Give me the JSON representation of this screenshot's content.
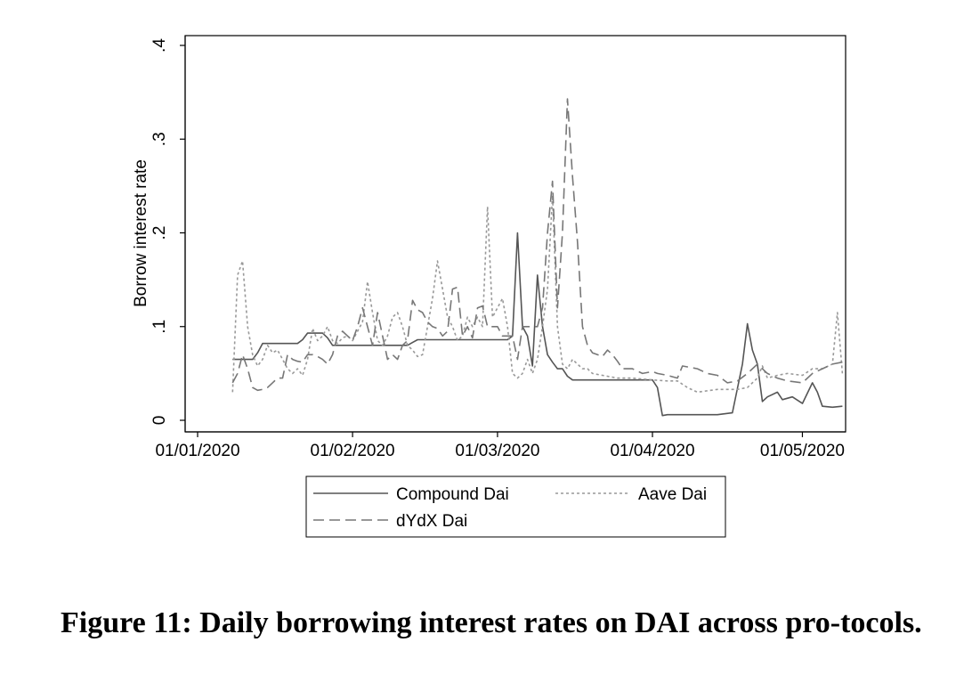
{
  "chart_data": {
    "type": "line",
    "ylabel": "Borrow interest rate",
    "xlabel": "",
    "x_range": [
      "2020-01-01",
      "2020-05-05"
    ],
    "ylim": [
      0,
      0.42
    ],
    "y_ticks": [
      {
        "value": 0,
        "label": "0"
      },
      {
        "value": 0.1,
        "label": ".1"
      },
      {
        "value": 0.2,
        "label": ".2"
      },
      {
        "value": 0.3,
        "label": ".3"
      },
      {
        "value": 0.4,
        "label": ".4"
      }
    ],
    "x_ticks": [
      {
        "value": "2020-01-01",
        "label": "01/01/2020"
      },
      {
        "value": "2020-02-01",
        "label": "01/02/2020"
      },
      {
        "value": "2020-03-01",
        "label": "01/03/2020"
      },
      {
        "value": "2020-04-01",
        "label": "01/04/2020"
      },
      {
        "value": "2020-05-01",
        "label": "01/05/2020"
      }
    ],
    "grid": false,
    "legend_position": "bottom",
    "series": [
      {
        "name": "Compound Dai",
        "color": "#555555",
        "dash": "solid",
        "points": [
          [
            "2020-01-08",
            0.065
          ],
          [
            "2020-01-09",
            0.065
          ],
          [
            "2020-01-10",
            0.065
          ],
          [
            "2020-01-11",
            0.065
          ],
          [
            "2020-01-12",
            0.065
          ],
          [
            "2020-01-13",
            0.072
          ],
          [
            "2020-01-14",
            0.082
          ],
          [
            "2020-01-18",
            0.082
          ],
          [
            "2020-01-21",
            0.082
          ],
          [
            "2020-01-22",
            0.086
          ],
          [
            "2020-01-23",
            0.093
          ],
          [
            "2020-01-26",
            0.093
          ],
          [
            "2020-01-27",
            0.088
          ],
          [
            "2020-01-28",
            0.08
          ],
          [
            "2020-02-01",
            0.08
          ],
          [
            "2020-02-08",
            0.08
          ],
          [
            "2020-02-12",
            0.08
          ],
          [
            "2020-02-13",
            0.083
          ],
          [
            "2020-02-14",
            0.086
          ],
          [
            "2020-02-20",
            0.086
          ],
          [
            "2020-02-27",
            0.086
          ],
          [
            "2020-03-03",
            0.086
          ],
          [
            "2020-03-04",
            0.09
          ],
          [
            "2020-03-05",
            0.2
          ],
          [
            "2020-03-06",
            0.1
          ],
          [
            "2020-03-07",
            0.09
          ],
          [
            "2020-03-08",
            0.058
          ],
          [
            "2020-03-09",
            0.155
          ],
          [
            "2020-03-10",
            0.1
          ],
          [
            "2020-03-11",
            0.07
          ],
          [
            "2020-03-12",
            0.062
          ],
          [
            "2020-03-13",
            0.055
          ],
          [
            "2020-03-14",
            0.055
          ],
          [
            "2020-03-15",
            0.047
          ],
          [
            "2020-03-16",
            0.043
          ],
          [
            "2020-03-22",
            0.043
          ],
          [
            "2020-03-28",
            0.043
          ],
          [
            "2020-04-01",
            0.043
          ],
          [
            "2020-04-02",
            0.035
          ],
          [
            "2020-04-03",
            0.005
          ],
          [
            "2020-04-04",
            0.006
          ],
          [
            "2020-04-08",
            0.006
          ],
          [
            "2020-04-14",
            0.006
          ],
          [
            "2020-04-17",
            0.008
          ],
          [
            "2020-04-19",
            0.06
          ],
          [
            "2020-04-20",
            0.103
          ],
          [
            "2020-04-21",
            0.075
          ],
          [
            "2020-04-22",
            0.06
          ],
          [
            "2020-04-23",
            0.02
          ],
          [
            "2020-04-24",
            0.025
          ],
          [
            "2020-04-26",
            0.03
          ],
          [
            "2020-04-27",
            0.022
          ],
          [
            "2020-04-29",
            0.025
          ],
          [
            "2020-05-01",
            0.018
          ],
          [
            "2020-05-03",
            0.04
          ],
          [
            "2020-05-04",
            0.03
          ],
          [
            "2020-05-05",
            0.015
          ],
          [
            "2020-05-07",
            0.014
          ],
          [
            "2020-05-09",
            0.015
          ]
        ]
      },
      {
        "name": "Aave Dai",
        "color": "#999999",
        "dash": "3,3",
        "points": [
          [
            "2020-01-08",
            0.03
          ],
          [
            "2020-01-09",
            0.155
          ],
          [
            "2020-01-10",
            0.17
          ],
          [
            "2020-01-11",
            0.1
          ],
          [
            "2020-01-12",
            0.07
          ],
          [
            "2020-01-13",
            0.058
          ],
          [
            "2020-01-14",
            0.065
          ],
          [
            "2020-01-15",
            0.08
          ],
          [
            "2020-01-16",
            0.072
          ],
          [
            "2020-01-17",
            0.075
          ],
          [
            "2020-01-18",
            0.065
          ],
          [
            "2020-01-19",
            0.055
          ],
          [
            "2020-01-20",
            0.05
          ],
          [
            "2020-01-21",
            0.055
          ],
          [
            "2020-01-22",
            0.048
          ],
          [
            "2020-01-23",
            0.065
          ],
          [
            "2020-01-24",
            0.098
          ],
          [
            "2020-01-25",
            0.085
          ],
          [
            "2020-01-26",
            0.09
          ],
          [
            "2020-01-27",
            0.1
          ],
          [
            "2020-01-28",
            0.085
          ],
          [
            "2020-01-29",
            0.082
          ],
          [
            "2020-01-30",
            0.088
          ],
          [
            "2020-01-31",
            0.09
          ],
          [
            "2020-02-01",
            0.085
          ],
          [
            "2020-02-02",
            0.095
          ],
          [
            "2020-02-03",
            0.105
          ],
          [
            "2020-02-04",
            0.148
          ],
          [
            "2020-02-05",
            0.115
          ],
          [
            "2020-02-06",
            0.085
          ],
          [
            "2020-02-07",
            0.08
          ],
          [
            "2020-02-08",
            0.09
          ],
          [
            "2020-02-09",
            0.11
          ],
          [
            "2020-02-10",
            0.115
          ],
          [
            "2020-02-11",
            0.1
          ],
          [
            "2020-02-12",
            0.08
          ],
          [
            "2020-02-13",
            0.075
          ],
          [
            "2020-02-14",
            0.068
          ],
          [
            "2020-02-15",
            0.07
          ],
          [
            "2020-02-16",
            0.1
          ],
          [
            "2020-02-17",
            0.13
          ],
          [
            "2020-02-18",
            0.17
          ],
          [
            "2020-02-19",
            0.14
          ],
          [
            "2020-02-20",
            0.11
          ],
          [
            "2020-02-21",
            0.1
          ],
          [
            "2020-02-22",
            0.085
          ],
          [
            "2020-02-23",
            0.09
          ],
          [
            "2020-02-24",
            0.11
          ],
          [
            "2020-02-25",
            0.1
          ],
          [
            "2020-02-26",
            0.11
          ],
          [
            "2020-02-27",
            0.1
          ],
          [
            "2020-02-28",
            0.228
          ],
          [
            "2020-02-29",
            0.11
          ],
          [
            "2020-03-01",
            0.12
          ],
          [
            "2020-03-02",
            0.13
          ],
          [
            "2020-03-03",
            0.1
          ],
          [
            "2020-03-04",
            0.05
          ],
          [
            "2020-03-05",
            0.045
          ],
          [
            "2020-03-06",
            0.05
          ],
          [
            "2020-03-07",
            0.065
          ],
          [
            "2020-03-08",
            0.05
          ],
          [
            "2020-03-09",
            0.065
          ],
          [
            "2020-03-10",
            0.1
          ],
          [
            "2020-03-11",
            0.14
          ],
          [
            "2020-03-12",
            0.24
          ],
          [
            "2020-03-13",
            0.1
          ],
          [
            "2020-03-14",
            0.06
          ],
          [
            "2020-03-15",
            0.055
          ],
          [
            "2020-03-16",
            0.065
          ],
          [
            "2020-03-17",
            0.06
          ],
          [
            "2020-03-18",
            0.055
          ],
          [
            "2020-03-19",
            0.055
          ],
          [
            "2020-03-20",
            0.05
          ],
          [
            "2020-03-22",
            0.048
          ],
          [
            "2020-03-25",
            0.045
          ],
          [
            "2020-03-28",
            0.045
          ],
          [
            "2020-04-01",
            0.043
          ],
          [
            "2020-04-04",
            0.042
          ],
          [
            "2020-04-06",
            0.042
          ],
          [
            "2020-04-08",
            0.035
          ],
          [
            "2020-04-10",
            0.03
          ],
          [
            "2020-04-14",
            0.033
          ],
          [
            "2020-04-18",
            0.033
          ],
          [
            "2020-04-20",
            0.035
          ],
          [
            "2020-04-22",
            0.045
          ],
          [
            "2020-04-23",
            0.058
          ],
          [
            "2020-04-24",
            0.045
          ],
          [
            "2020-04-26",
            0.048
          ],
          [
            "2020-04-28",
            0.05
          ],
          [
            "2020-05-01",
            0.048
          ],
          [
            "2020-05-03",
            0.055
          ],
          [
            "2020-05-05",
            0.055
          ],
          [
            "2020-05-07",
            0.06
          ],
          [
            "2020-05-08",
            0.115
          ],
          [
            "2020-05-09",
            0.05
          ]
        ]
      },
      {
        "name": "dYdX Dai",
        "color": "#777777",
        "dash": "12,6",
        "points": [
          [
            "2020-01-08",
            0.04
          ],
          [
            "2020-01-09",
            0.05
          ],
          [
            "2020-01-10",
            0.07
          ],
          [
            "2020-01-11",
            0.055
          ],
          [
            "2020-01-12",
            0.035
          ],
          [
            "2020-01-13",
            0.032
          ],
          [
            "2020-01-14",
            0.033
          ],
          [
            "2020-01-15",
            0.035
          ],
          [
            "2020-01-16",
            0.04
          ],
          [
            "2020-01-17",
            0.045
          ],
          [
            "2020-01-18",
            0.045
          ],
          [
            "2020-01-19",
            0.07
          ],
          [
            "2020-01-20",
            0.065
          ],
          [
            "2020-01-21",
            0.063
          ],
          [
            "2020-01-22",
            0.062
          ],
          [
            "2020-01-23",
            0.07
          ],
          [
            "2020-01-24",
            0.07
          ],
          [
            "2020-01-25",
            0.068
          ],
          [
            "2020-01-26",
            0.065
          ],
          [
            "2020-01-27",
            0.06
          ],
          [
            "2020-01-28",
            0.07
          ],
          [
            "2020-01-29",
            0.09
          ],
          [
            "2020-01-30",
            0.095
          ],
          [
            "2020-01-31",
            0.09
          ],
          [
            "2020-02-01",
            0.085
          ],
          [
            "2020-02-02",
            0.1
          ],
          [
            "2020-02-03",
            0.12
          ],
          [
            "2020-02-04",
            0.1
          ],
          [
            "2020-02-05",
            0.08
          ],
          [
            "2020-02-06",
            0.115
          ],
          [
            "2020-02-07",
            0.09
          ],
          [
            "2020-02-08",
            0.065
          ],
          [
            "2020-02-09",
            0.07
          ],
          [
            "2020-02-10",
            0.065
          ],
          [
            "2020-02-11",
            0.08
          ],
          [
            "2020-02-12",
            0.085
          ],
          [
            "2020-02-13",
            0.128
          ],
          [
            "2020-02-14",
            0.118
          ],
          [
            "2020-02-15",
            0.115
          ],
          [
            "2020-02-16",
            0.105
          ],
          [
            "2020-02-17",
            0.1
          ],
          [
            "2020-02-18",
            0.098
          ],
          [
            "2020-02-19",
            0.09
          ],
          [
            "2020-02-20",
            0.095
          ],
          [
            "2020-02-21",
            0.14
          ],
          [
            "2020-02-22",
            0.142
          ],
          [
            "2020-02-23",
            0.09
          ],
          [
            "2020-02-24",
            0.1
          ],
          [
            "2020-02-25",
            0.088
          ],
          [
            "2020-02-26",
            0.12
          ],
          [
            "2020-02-27",
            0.122
          ],
          [
            "2020-02-28",
            0.1
          ],
          [
            "2020-02-29",
            0.1
          ],
          [
            "2020-03-01",
            0.1
          ],
          [
            "2020-03-02",
            0.09
          ],
          [
            "2020-03-03",
            0.09
          ],
          [
            "2020-03-04",
            0.09
          ],
          [
            "2020-03-05",
            0.065
          ],
          [
            "2020-03-06",
            0.1
          ],
          [
            "2020-03-07",
            0.1
          ],
          [
            "2020-03-08",
            0.1
          ],
          [
            "2020-03-09",
            0.1
          ],
          [
            "2020-03-10",
            0.12
          ],
          [
            "2020-03-11",
            0.2
          ],
          [
            "2020-03-12",
            0.255
          ],
          [
            "2020-03-13",
            0.12
          ],
          [
            "2020-03-14",
            0.2
          ],
          [
            "2020-03-15",
            0.343
          ],
          [
            "2020-03-16",
            0.26
          ],
          [
            "2020-03-17",
            0.19
          ],
          [
            "2020-03-18",
            0.1
          ],
          [
            "2020-03-19",
            0.08
          ],
          [
            "2020-03-20",
            0.072
          ],
          [
            "2020-03-21",
            0.07
          ],
          [
            "2020-03-22",
            0.068
          ],
          [
            "2020-03-23",
            0.075
          ],
          [
            "2020-03-24",
            0.07
          ],
          [
            "2020-03-25",
            0.063
          ],
          [
            "2020-03-26",
            0.055
          ],
          [
            "2020-03-28",
            0.055
          ],
          [
            "2020-03-30",
            0.05
          ],
          [
            "2020-04-01",
            0.052
          ],
          [
            "2020-04-02",
            0.05
          ],
          [
            "2020-04-04",
            0.048
          ],
          [
            "2020-04-06",
            0.045
          ],
          [
            "2020-04-07",
            0.058
          ],
          [
            "2020-04-08",
            0.057
          ],
          [
            "2020-04-10",
            0.055
          ],
          [
            "2020-04-12",
            0.05
          ],
          [
            "2020-04-14",
            0.048
          ],
          [
            "2020-04-16",
            0.04
          ],
          [
            "2020-04-18",
            0.042
          ],
          [
            "2020-04-20",
            0.05
          ],
          [
            "2020-04-22",
            0.06
          ],
          [
            "2020-04-24",
            0.05
          ],
          [
            "2020-04-26",
            0.045
          ],
          [
            "2020-04-28",
            0.042
          ],
          [
            "2020-05-01",
            0.04
          ],
          [
            "2020-05-03",
            0.05
          ],
          [
            "2020-05-05",
            0.055
          ],
          [
            "2020-05-07",
            0.06
          ],
          [
            "2020-05-09",
            0.062
          ]
        ]
      }
    ]
  },
  "caption": "Figure 11: Daily borrowing interest rates on DAI across pro-tocols."
}
